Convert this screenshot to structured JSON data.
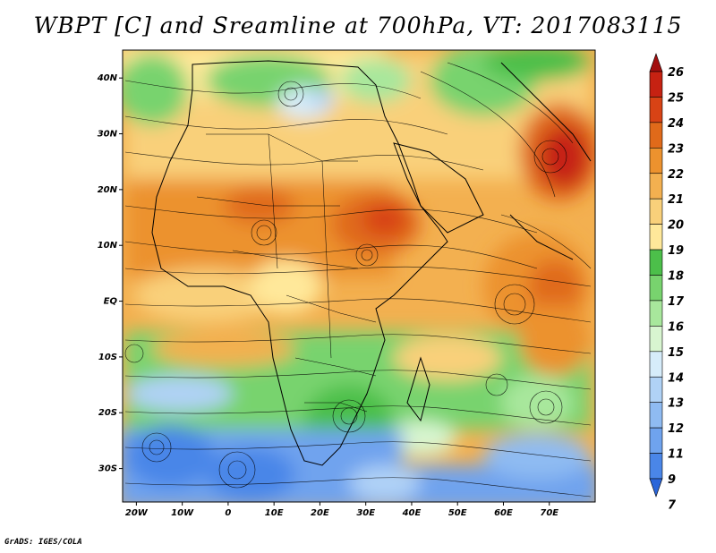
{
  "title": "WBPT [C] and Sreamline at 700hPa, VT: 2017083115",
  "footer": "GrADS: IGES/COLA",
  "chart_data": {
    "type": "heatmap",
    "variable": "Wet-bulb potential temperature with streamlines",
    "level": "700hPa",
    "valid_time": "2017083115",
    "lon_range": [
      -23,
      80
    ],
    "lat_range": [
      -36,
      45
    ],
    "x_ticks": [
      "20W",
      "10W",
      "0",
      "10E",
      "20E",
      "30E",
      "40E",
      "50E",
      "60E",
      "70E"
    ],
    "y_ticks": [
      "40N",
      "30N",
      "20N",
      "10N",
      "EQ",
      "10S",
      "20S",
      "30S"
    ],
    "colorbar": {
      "levels": [
        "7",
        "9",
        "11",
        "12",
        "13",
        "14",
        "15",
        "16",
        "17",
        "18",
        "19",
        "20",
        "21",
        "22",
        "23",
        "24",
        "25",
        "26"
      ],
      "colors": [
        "#2b66d9",
        "#4a86e8",
        "#6fa3ee",
        "#8fbbf2",
        "#b0d2f6",
        "#d6ecfa",
        "#d8f5d0",
        "#a8e79c",
        "#78d36e",
        "#4cbf4a",
        "#ffe89a",
        "#f9d07a",
        "#f3b050",
        "#ec922e",
        "#e06a1a",
        "#d84315",
        "#c62212",
        "#a30f0f"
      ]
    }
  }
}
